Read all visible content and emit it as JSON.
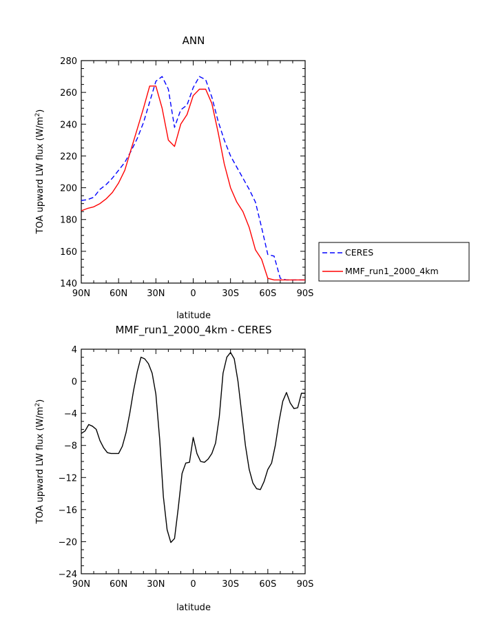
{
  "chart_data": [
    {
      "type": "line",
      "title": "ANN",
      "xlabel": "latitude",
      "ylabel_main": "TOA upward LW flux  (W/m",
      "ylabel_sup": "2",
      "ylabel_tail": ")",
      "x_ticks": [
        {
          "lat": 90,
          "label": "90N"
        },
        {
          "lat": 60,
          "label": "60N"
        },
        {
          "lat": 30,
          "label": "30N"
        },
        {
          "lat": 0,
          "label": "0"
        },
        {
          "lat": -30,
          "label": "30S"
        },
        {
          "lat": -60,
          "label": "60S"
        },
        {
          "lat": -90,
          "label": "90S"
        }
      ],
      "xlim": [
        90,
        -90
      ],
      "ylim": [
        140,
        280
      ],
      "y_ticks": [
        140,
        160,
        180,
        200,
        220,
        240,
        260,
        280
      ],
      "legend_position": "right",
      "series": [
        {
          "name": "CERES",
          "color": "#0000ff",
          "dash": true,
          "x": [
            90,
            85,
            80,
            75,
            70,
            65,
            60,
            55,
            50,
            45,
            40,
            35,
            30,
            25,
            20,
            15,
            10,
            5,
            0,
            -5,
            -10,
            -15,
            -20,
            -25,
            -30,
            -35,
            -40,
            -45,
            -50,
            -55,
            -60,
            -65,
            -70,
            -75,
            -80,
            -85,
            -90
          ],
          "y": [
            192,
            192.5,
            194,
            199,
            202,
            206,
            211,
            216,
            223,
            231,
            241,
            254,
            267,
            270,
            262,
            238,
            249,
            252,
            263,
            270,
            268,
            257,
            242,
            230,
            220,
            213,
            206,
            199,
            191,
            175,
            158,
            157,
            143,
            142,
            142,
            142,
            142
          ]
        },
        {
          "name": "MMF_run1_2000_4km",
          "color": "#ff0000",
          "dash": false,
          "x": [
            90,
            85,
            80,
            75,
            70,
            65,
            60,
            55,
            50,
            45,
            40,
            35,
            30,
            25,
            20,
            15,
            10,
            5,
            0,
            -5,
            -10,
            -15,
            -20,
            -25,
            -30,
            -35,
            -40,
            -45,
            -50,
            -55,
            -60,
            -65,
            -70,
            -75,
            -80,
            -85,
            -90
          ],
          "y": [
            185.5,
            187,
            188,
            190,
            193,
            197,
            203,
            211,
            224,
            237,
            250,
            264,
            264,
            250,
            230,
            226,
            240,
            246,
            258,
            262,
            262,
            253,
            235,
            215,
            200,
            191,
            185,
            175,
            161,
            155,
            143,
            142,
            142,
            142,
            142,
            142,
            142
          ]
        }
      ]
    },
    {
      "type": "line",
      "title": "MMF_run1_2000_4km - CERES",
      "xlabel": "latitude",
      "ylabel_main": "TOA upward LW flux  (W/m",
      "ylabel_sup": "2",
      "ylabel_tail": ")",
      "x_ticks": [
        {
          "lat": 90,
          "label": "90N"
        },
        {
          "lat": 60,
          "label": "60N"
        },
        {
          "lat": 30,
          "label": "30N"
        },
        {
          "lat": 0,
          "label": "0"
        },
        {
          "lat": -30,
          "label": "30S"
        },
        {
          "lat": -60,
          "label": "60S"
        },
        {
          "lat": -90,
          "label": "90S"
        }
      ],
      "xlim": [
        90,
        -90
      ],
      "ylim": [
        -24,
        4
      ],
      "y_ticks": [
        {
          "value": -24,
          "label": "−24"
        },
        {
          "value": -20,
          "label": "−20"
        },
        {
          "value": -16,
          "label": "−16"
        },
        {
          "value": -12,
          "label": "−12"
        },
        {
          "value": -8,
          "label": "−8"
        },
        {
          "value": -4,
          "label": "−4"
        },
        {
          "value": 0,
          "label": "0"
        },
        {
          "value": 4,
          "label": "4"
        }
      ],
      "series": [
        {
          "color": "#000000",
          "x": [
            90,
            87,
            84,
            81,
            78,
            75,
            72,
            69,
            66,
            63,
            60,
            57,
            54,
            51,
            48,
            45,
            42,
            39,
            36,
            33,
            30,
            27,
            24,
            21,
            18,
            15,
            12,
            9,
            6,
            3,
            0,
            -3,
            -6,
            -9,
            -12,
            -15,
            -18,
            -21,
            -24,
            -27,
            -30,
            -33,
            -36,
            -39,
            -42,
            -45,
            -48,
            -51,
            -54,
            -57,
            -60,
            -63,
            -66,
            -69,
            -72,
            -75,
            -78,
            -81,
            -84,
            -87,
            -90
          ],
          "y": [
            -6.5,
            -6.2,
            -5.4,
            -5.6,
            -6.0,
            -7.4,
            -8.3,
            -8.9,
            -9.0,
            -9.0,
            -9.0,
            -8.1,
            -6.4,
            -4.0,
            -1.2,
            1.2,
            3.0,
            2.8,
            2.2,
            1.0,
            -1.6,
            -7.2,
            -14.4,
            -18.5,
            -20.1,
            -19.6,
            -15.8,
            -11.5,
            -10.2,
            -10.1,
            -7.0,
            -9.0,
            -10.0,
            -10.1,
            -9.7,
            -9.0,
            -7.7,
            -4.4,
            1.0,
            3.0,
            3.6,
            2.8,
            0.0,
            -4.0,
            -8.0,
            -11.0,
            -12.7,
            -13.4,
            -13.5,
            -12.5,
            -11.0,
            -10.2,
            -8.0,
            -5.0,
            -2.5,
            -1.4,
            -2.7,
            -3.4,
            -3.3,
            -1.5,
            -1.5
          ]
        }
      ]
    }
  ]
}
